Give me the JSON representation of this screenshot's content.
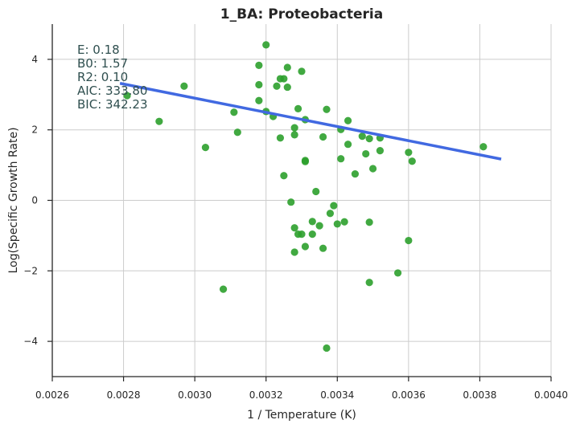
{
  "chart_data": {
    "type": "scatter",
    "title": "1_BA: Proteobacteria",
    "xlabel": "1 / Temperature (K)",
    "ylabel": "Log(Specific Growth Rate)",
    "xlim": [
      0.0026,
      0.004
    ],
    "ylim": [
      -5,
      5
    ],
    "xticks": [
      0.0026,
      0.0028,
      0.003,
      0.0032,
      0.0034,
      0.0036,
      0.0038,
      0.004
    ],
    "xtick_labels": [
      "0.0026",
      "0.0028",
      "0.0030",
      "0.0032",
      "0.0034",
      "0.0036",
      "0.0038",
      "0.0040"
    ],
    "yticks": [
      -4,
      -2,
      0,
      2,
      4
    ],
    "ytick_labels": [
      "−4",
      "−2",
      "0",
      "2",
      "4"
    ],
    "grid": true,
    "colors": {
      "points": "#2ca02c",
      "fit_line": "#4169e1",
      "annotation": "#2f4f4f",
      "grid": "#cccccc",
      "axis": "#262626"
    },
    "annotations": [
      "E:  0.18",
      "B0:  1.57",
      "R2:  0.10",
      "AIC: 333.80",
      "BIC: 342.23"
    ],
    "fit_line": {
      "x": [
        0.00279,
        0.00386
      ],
      "y": [
        3.32,
        1.17
      ]
    },
    "points": [
      {
        "x": 0.00281,
        "y": 2.97
      },
      {
        "x": 0.0029,
        "y": 2.24
      },
      {
        "x": 0.00297,
        "y": 3.24
      },
      {
        "x": 0.00303,
        "y": 1.5
      },
      {
        "x": 0.00308,
        "y": -2.52
      },
      {
        "x": 0.00311,
        "y": 2.5
      },
      {
        "x": 0.00312,
        "y": 1.93
      },
      {
        "x": 0.00318,
        "y": 2.83
      },
      {
        "x": 0.00318,
        "y": 3.28
      },
      {
        "x": 0.00318,
        "y": 3.83
      },
      {
        "x": 0.0032,
        "y": 4.41
      },
      {
        "x": 0.0032,
        "y": 2.52
      },
      {
        "x": 0.00322,
        "y": 2.38
      },
      {
        "x": 0.00323,
        "y": 3.24
      },
      {
        "x": 0.00324,
        "y": 3.45
      },
      {
        "x": 0.00324,
        "y": 1.77
      },
      {
        "x": 0.00325,
        "y": 3.45
      },
      {
        "x": 0.00325,
        "y": 0.7
      },
      {
        "x": 0.00326,
        "y": 3.77
      },
      {
        "x": 0.00326,
        "y": 3.21
      },
      {
        "x": 0.00327,
        "y": -0.05
      },
      {
        "x": 0.00328,
        "y": -0.78
      },
      {
        "x": 0.00328,
        "y": 2.06
      },
      {
        "x": 0.00328,
        "y": 1.86
      },
      {
        "x": 0.00329,
        "y": 2.6
      },
      {
        "x": 0.00328,
        "y": -1.47
      },
      {
        "x": 0.00329,
        "y": -0.96
      },
      {
        "x": 0.0033,
        "y": -0.96
      },
      {
        "x": 0.0033,
        "y": 3.66
      },
      {
        "x": 0.00331,
        "y": 2.29
      },
      {
        "x": 0.00331,
        "y": 1.13
      },
      {
        "x": 0.00331,
        "y": 1.1
      },
      {
        "x": 0.00331,
        "y": -1.31
      },
      {
        "x": 0.00333,
        "y": -0.6
      },
      {
        "x": 0.00333,
        "y": -0.96
      },
      {
        "x": 0.00334,
        "y": 0.25
      },
      {
        "x": 0.00335,
        "y": -0.72
      },
      {
        "x": 0.00336,
        "y": 1.8
      },
      {
        "x": 0.00336,
        "y": -1.36
      },
      {
        "x": 0.00337,
        "y": 2.58
      },
      {
        "x": 0.00337,
        "y": -4.19
      },
      {
        "x": 0.00338,
        "y": -0.37
      },
      {
        "x": 0.00339,
        "y": -0.15
      },
      {
        "x": 0.0034,
        "y": -0.67
      },
      {
        "x": 0.00341,
        "y": 2.01
      },
      {
        "x": 0.00341,
        "y": 1.18
      },
      {
        "x": 0.00342,
        "y": -0.61
      },
      {
        "x": 0.00343,
        "y": 1.59
      },
      {
        "x": 0.00343,
        "y": 2.26
      },
      {
        "x": 0.00345,
        "y": 0.75
      },
      {
        "x": 0.00347,
        "y": 1.82
      },
      {
        "x": 0.00348,
        "y": 1.32
      },
      {
        "x": 0.00349,
        "y": -0.62
      },
      {
        "x": 0.00349,
        "y": -2.33
      },
      {
        "x": 0.00349,
        "y": 1.75
      },
      {
        "x": 0.0035,
        "y": 0.9
      },
      {
        "x": 0.00352,
        "y": 1.77
      },
      {
        "x": 0.00352,
        "y": 1.41
      },
      {
        "x": 0.00357,
        "y": -2.06
      },
      {
        "x": 0.0036,
        "y": -1.14
      },
      {
        "x": 0.0036,
        "y": 1.36
      },
      {
        "x": 0.00361,
        "y": 1.11
      },
      {
        "x": 0.00381,
        "y": 1.52
      }
    ]
  }
}
